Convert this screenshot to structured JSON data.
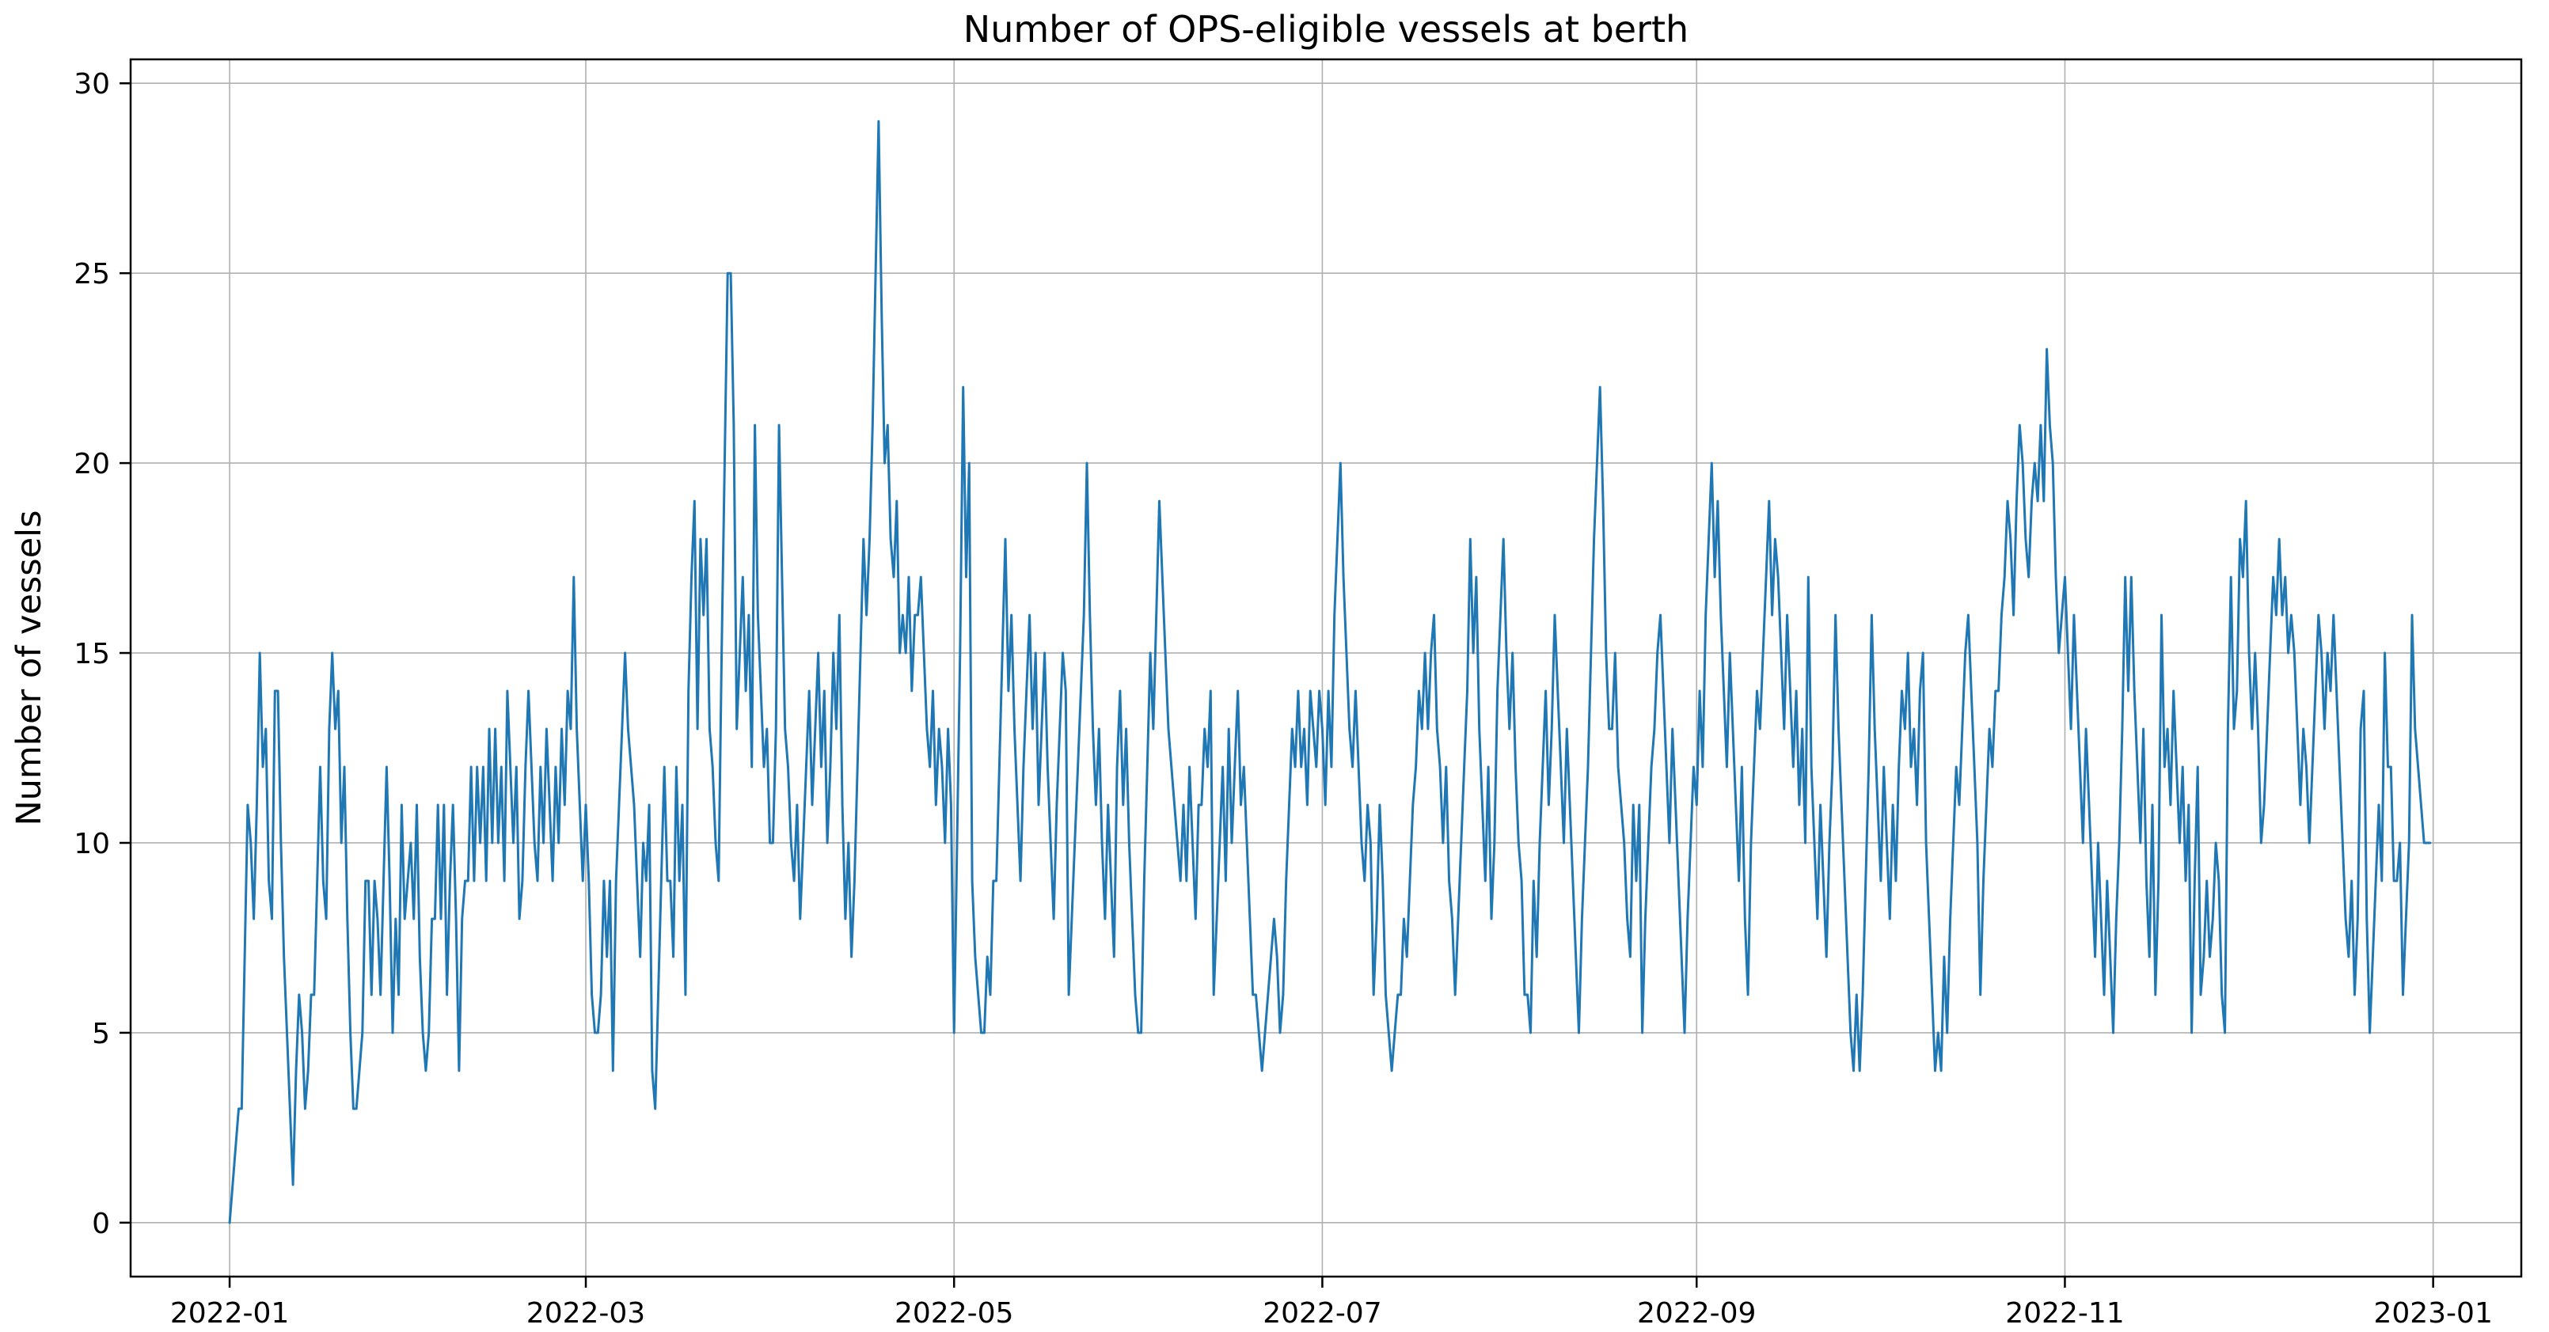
{
  "chart_data": {
    "type": "line",
    "title": "Number of OPS-eligible vessels at berth",
    "ylabel": "Number of vessels",
    "xlabel": "",
    "legend": null,
    "grid": true,
    "line_color": "#1f77b4",
    "grid_color": "#b0b0b0",
    "spine_color": "#000000",
    "y_ticks": [
      0,
      5,
      10,
      15,
      20,
      25,
      30
    ],
    "x_tick_labels": [
      "2022-01",
      "2022-03",
      "2022-05",
      "2022-07",
      "2022-09",
      "2022-11",
      "2023-01"
    ],
    "x_tick_days": [
      0,
      59,
      120,
      181,
      243,
      304,
      365
    ],
    "ylim": [
      -1.42,
      30.63
    ],
    "xlim_days": [
      -16.4,
      379.6
    ],
    "start_date": "2022-01-01",
    "samples_per_day": 2,
    "y_max_observed": 29,
    "y_min_observed": 0,
    "values": [
      0,
      1,
      2,
      3,
      3,
      7,
      11,
      10,
      8,
      11,
      15,
      12,
      13,
      9,
      8,
      14,
      14,
      10,
      7,
      5,
      3,
      1,
      4,
      6,
      5,
      3,
      4,
      6,
      6,
      9,
      12,
      9,
      8,
      13,
      15,
      13,
      14,
      10,
      12,
      8,
      5,
      3,
      3,
      4,
      5,
      9,
      9,
      6,
      9,
      8,
      6,
      9,
      12,
      9,
      5,
      8,
      6,
      11,
      8,
      9,
      10,
      8,
      11,
      7,
      5,
      4,
      5,
      8,
      8,
      11,
      8,
      11,
      6,
      9,
      11,
      8,
      4,
      8,
      9,
      9,
      12,
      9,
      12,
      10,
      12,
      9,
      13,
      10,
      13,
      10,
      12,
      9,
      14,
      12,
      10,
      12,
      8,
      9,
      12,
      14,
      12,
      10,
      9,
      12,
      10,
      13,
      11,
      9,
      12,
      10,
      13,
      11,
      14,
      13,
      17,
      13,
      11,
      9,
      11,
      9,
      6,
      5,
      5,
      6,
      9,
      7,
      9,
      4,
      9,
      11,
      13,
      15,
      13,
      12,
      11,
      9,
      7,
      10,
      9,
      11,
      4,
      3,
      6,
      9,
      12,
      9,
      9,
      7,
      12,
      9,
      11,
      6,
      14,
      17,
      19,
      13,
      18,
      16,
      18,
      13,
      12,
      10,
      9,
      15,
      20,
      25,
      25,
      21,
      13,
      15,
      17,
      14,
      16,
      12,
      21,
      16,
      14,
      12,
      13,
      10,
      10,
      13,
      21,
      17,
      13,
      12,
      10,
      9,
      11,
      8,
      10,
      12,
      14,
      11,
      13,
      15,
      12,
      14,
      10,
      12,
      15,
      13,
      16,
      11,
      8,
      10,
      7,
      9,
      12,
      15,
      18,
      16,
      18,
      21,
      25,
      29,
      24,
      20,
      21,
      18,
      17,
      19,
      15,
      16,
      15,
      17,
      14,
      16,
      16,
      17,
      15,
      13,
      12,
      14,
      11,
      13,
      12,
      10,
      13,
      11,
      5,
      10,
      15,
      22,
      17,
      20,
      9,
      7,
      6,
      5,
      5,
      7,
      6,
      9,
      9,
      12,
      15,
      18,
      14,
      16,
      13,
      11,
      9,
      12,
      14,
      16,
      13,
      15,
      11,
      13,
      15,
      12,
      10,
      8,
      11,
      13,
      15,
      14,
      6,
      8,
      10,
      12,
      14,
      16,
      20,
      16,
      13,
      11,
      13,
      10,
      8,
      11,
      9,
      7,
      12,
      14,
      11,
      13,
      10,
      8,
      6,
      5,
      5,
      9,
      12,
      15,
      13,
      16,
      19,
      17,
      15,
      13,
      12,
      11,
      10,
      9,
      11,
      9,
      12,
      10,
      8,
      11,
      11,
      13,
      12,
      14,
      6,
      8,
      10,
      12,
      9,
      13,
      10,
      12,
      14,
      11,
      12,
      10,
      8,
      6,
      6,
      5,
      4,
      5,
      6,
      7,
      8,
      7,
      5,
      6,
      9,
      11,
      13,
      12,
      14,
      12,
      13,
      11,
      14,
      13,
      12,
      14,
      13,
      11,
      14,
      12,
      16,
      18,
      20,
      17,
      15,
      13,
      12,
      14,
      12,
      10,
      9,
      11,
      10,
      6,
      8,
      11,
      9,
      6,
      5,
      4,
      5,
      6,
      6,
      8,
      7,
      9,
      11,
      12,
      14,
      13,
      15,
      13,
      15,
      16,
      13,
      12,
      10,
      12,
      9,
      8,
      6,
      8,
      10,
      12,
      14,
      18,
      15,
      17,
      13,
      11,
      9,
      12,
      8,
      10,
      14,
      16,
      18,
      15,
      13,
      15,
      12,
      10,
      9,
      6,
      6,
      5,
      9,
      7,
      10,
      12,
      14,
      11,
      13,
      16,
      14,
      12,
      10,
      13,
      11,
      9,
      7,
      5,
      8,
      10,
      12,
      15,
      18,
      20,
      22,
      19,
      15,
      13,
      13,
      15,
      12,
      11,
      10,
      8,
      7,
      11,
      9,
      11,
      5,
      8,
      10,
      12,
      13,
      15,
      16,
      14,
      12,
      10,
      13,
      11,
      9,
      7,
      5,
      8,
      10,
      12,
      11,
      14,
      12,
      16,
      18,
      20,
      17,
      19,
      16,
      14,
      12,
      15,
      13,
      11,
      9,
      12,
      8,
      6,
      10,
      12,
      14,
      13,
      15,
      17,
      19,
      16,
      18,
      17,
      15,
      13,
      16,
      14,
      12,
      14,
      11,
      13,
      10,
      17,
      12,
      10,
      8,
      11,
      9,
      7,
      10,
      12,
      16,
      13,
      11,
      9,
      7,
      5,
      4,
      6,
      4,
      6,
      9,
      12,
      16,
      13,
      11,
      9,
      12,
      10,
      8,
      11,
      9,
      12,
      14,
      13,
      15,
      12,
      13,
      11,
      14,
      15,
      10,
      8,
      6,
      4,
      5,
      4,
      7,
      5,
      8,
      10,
      12,
      11,
      13,
      15,
      16,
      14,
      12,
      10,
      6,
      9,
      11,
      13,
      12,
      14,
      14,
      16,
      17,
      19,
      18,
      16,
      19,
      21,
      20,
      18,
      17,
      19,
      20,
      19,
      21,
      19,
      23,
      21,
      20,
      17,
      15,
      16,
      17,
      15,
      13,
      16,
      14,
      12,
      10,
      13,
      11,
      9,
      7,
      10,
      8,
      6,
      9,
      7,
      5,
      8,
      10,
      13,
      17,
      14,
      17,
      14,
      12,
      10,
      13,
      9,
      7,
      11,
      6,
      9,
      16,
      12,
      13,
      11,
      14,
      12,
      10,
      12,
      9,
      11,
      5,
      9,
      12,
      6,
      7,
      9,
      7,
      8,
      10,
      9,
      6,
      5,
      13,
      17,
      13,
      14,
      18,
      17,
      19,
      15,
      13,
      15,
      13,
      10,
      11,
      13,
      15,
      17,
      16,
      18,
      16,
      17,
      15,
      16,
      15,
      13,
      11,
      13,
      12,
      10,
      12,
      14,
      16,
      15,
      13,
      15,
      14,
      16,
      14,
      12,
      10,
      8,
      7,
      9,
      6,
      8,
      13,
      14,
      8,
      5,
      7,
      9,
      11,
      9,
      15,
      12,
      12,
      9,
      9,
      10,
      6,
      8,
      10,
      16,
      13,
      12,
      11,
      10,
      10,
      10
    ]
  }
}
